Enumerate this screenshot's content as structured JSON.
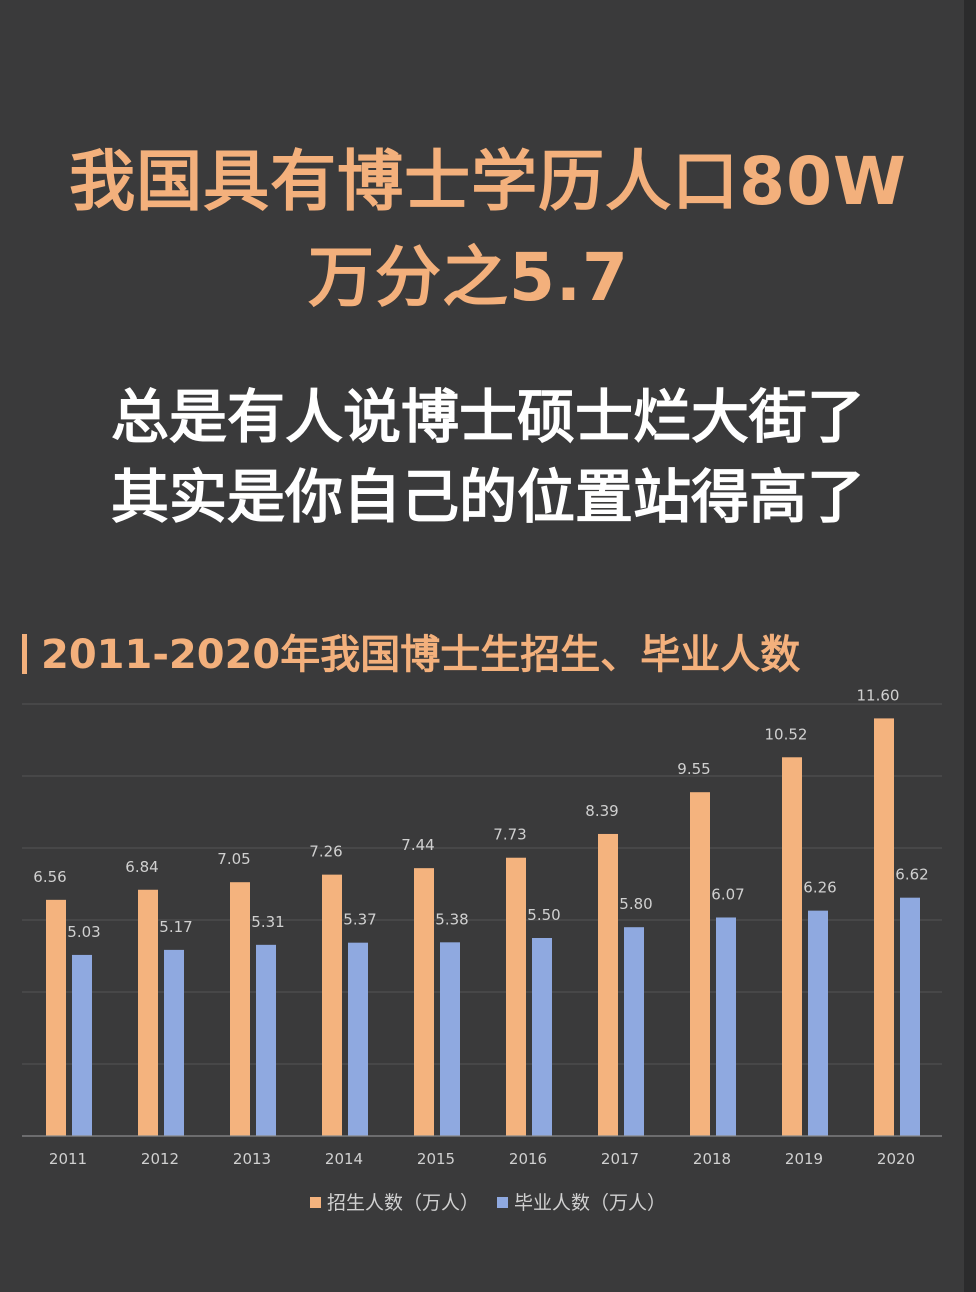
{
  "headline": {
    "line1": "我国具有博士学历人口80W",
    "line2": "万分之5.7"
  },
  "subline": {
    "line1": "总是有人说博士硕士烂大街了",
    "line2": "其实是你自己的位置站得高了"
  },
  "colors": {
    "background": "#3a3a3b",
    "accent": "#f3b07c",
    "series1": "#f4b37e",
    "series2": "#8fa9e0",
    "grid": "#545456",
    "text_white": "#ffffff",
    "label": "#d0d0d0"
  },
  "chart_data": {
    "type": "bar",
    "title": "2011-2020年我国博士生招生、毕业人数",
    "categories": [
      "2011",
      "2012",
      "2013",
      "2014",
      "2015",
      "2016",
      "2017",
      "2018",
      "2019",
      "2020"
    ],
    "series": [
      {
        "name": "招生人数（万人）",
        "values": [
          6.56,
          6.84,
          7.05,
          7.26,
          7.44,
          7.73,
          8.39,
          9.55,
          10.52,
          11.6
        ],
        "labels": [
          "6.56",
          "6.84",
          "7.05",
          "7.26",
          "7.44",
          "7.73",
          "8.39",
          "9.55",
          "10.52",
          "11.60"
        ]
      },
      {
        "name": "毕业人数（万人）",
        "values": [
          5.03,
          5.17,
          5.31,
          5.37,
          5.38,
          5.5,
          5.8,
          6.07,
          6.26,
          6.62
        ],
        "labels": [
          "5.03",
          "5.17",
          "5.31",
          "5.37",
          "5.38",
          "5.50",
          "5.80",
          "6.07",
          "6.26",
          "6.62"
        ]
      }
    ],
    "ylim": [
      0,
      12
    ],
    "grid": true,
    "legend_position": "bottom"
  }
}
